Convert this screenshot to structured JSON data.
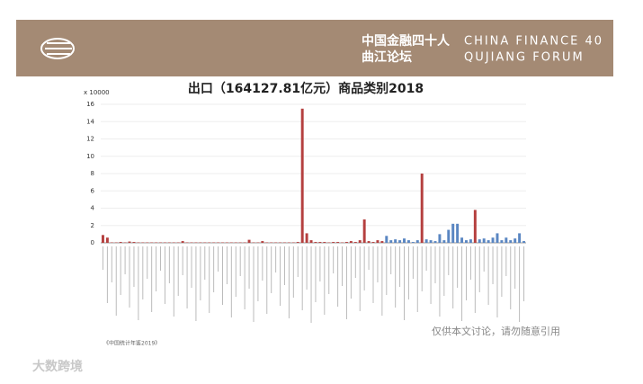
{
  "header": {
    "org_cn_line1": "中国金融四十人",
    "org_cn_line2": "曲江论坛",
    "org_en_line1": "CHINA FINANCE 40",
    "org_en_line2": "QUJIANG FORUM"
  },
  "chart_data": {
    "type": "bar",
    "title": "出口（164127.81亿元）商品类别2018",
    "y_unit": "x 10000",
    "values": [
      0.9,
      0.6,
      0.05,
      0.05,
      0.1,
      0.05,
      0.15,
      0.1,
      0.05,
      0.05,
      0.05,
      0.05,
      0.05,
      0.05,
      0.05,
      0.05,
      0.05,
      0.05,
      0.2,
      0.05,
      0.05,
      0.05,
      0.05,
      0.05,
      0.05,
      0.05,
      0.05,
      0.05,
      0.05,
      0.05,
      0.05,
      0.05,
      0.05,
      0.35,
      0.05,
      0.05,
      0.2,
      0.05,
      0.05,
      0.05,
      0.05,
      0.05,
      0.05,
      0.05,
      0.1,
      15.5,
      1.1,
      0.3,
      0.1,
      0.1,
      0.1,
      0.05,
      0.1,
      0.1,
      0.05,
      0.1,
      0.2,
      0.1,
      0.3,
      2.7,
      0.2,
      0.1,
      0.3,
      0.2,
      0.8,
      0.3,
      0.4,
      0.3,
      0.5,
      0.3,
      0.1,
      0.3,
      8.0,
      0.4,
      0.3,
      0.2,
      1.0,
      0.3,
      1.5,
      2.2,
      2.2,
      0.6,
      0.3,
      0.4,
      3.8,
      0.4,
      0.5,
      0.3,
      0.6,
      1.1,
      0.3,
      0.6,
      0.3,
      0.5,
      1.1,
      0.2
    ],
    "colors": [
      "#b5403f",
      "#b5403f",
      "#b5403f",
      "#b5403f",
      "#b5403f",
      "#b5403f",
      "#b5403f",
      "#b5403f",
      "#b5403f",
      "#b5403f",
      "#b5403f",
      "#b5403f",
      "#b5403f",
      "#b5403f",
      "#b5403f",
      "#b5403f",
      "#b5403f",
      "#b5403f",
      "#b5403f",
      "#b5403f",
      "#b5403f",
      "#b5403f",
      "#b5403f",
      "#b5403f",
      "#b5403f",
      "#b5403f",
      "#b5403f",
      "#b5403f",
      "#b5403f",
      "#b5403f",
      "#b5403f",
      "#b5403f",
      "#b5403f",
      "#b5403f",
      "#b5403f",
      "#b5403f",
      "#b5403f",
      "#b5403f",
      "#b5403f",
      "#b5403f",
      "#b5403f",
      "#b5403f",
      "#b5403f",
      "#b5403f",
      "#b5403f",
      "#b5403f",
      "#b5403f",
      "#b5403f",
      "#b5403f",
      "#b5403f",
      "#b5403f",
      "#b5403f",
      "#b5403f",
      "#b5403f",
      "#b5403f",
      "#b5403f",
      "#b5403f",
      "#b5403f",
      "#b5403f",
      "#b5403f",
      "#b5403f",
      "#b5403f",
      "#b5403f",
      "#b5403f",
      "#5a86c2",
      "#5a86c2",
      "#5a86c2",
      "#5a86c2",
      "#5a86c2",
      "#5a86c2",
      "#5a86c2",
      "#5a86c2",
      "#b5403f",
      "#5a86c2",
      "#5a86c2",
      "#5a86c2",
      "#5a86c2",
      "#5a86c2",
      "#5a86c2",
      "#5a86c2",
      "#5a86c2",
      "#5a86c2",
      "#5a86c2",
      "#5a86c2",
      "#b5403f",
      "#5a86c2",
      "#5a86c2",
      "#5a86c2",
      "#5a86c2",
      "#5a86c2",
      "#5a86c2",
      "#5a86c2",
      "#5a86c2",
      "#5a86c2",
      "#5a86c2",
      "#5a86c2"
    ],
    "ylim": [
      0,
      16
    ],
    "yticks": [
      0,
      2,
      4,
      6,
      8,
      10,
      12,
      14,
      16
    ],
    "grid": true,
    "source_note": "《中国统计年鉴2019》"
  },
  "watermark": "仅供本文讨论，请勿随意引用",
  "brand": "大数跨境"
}
